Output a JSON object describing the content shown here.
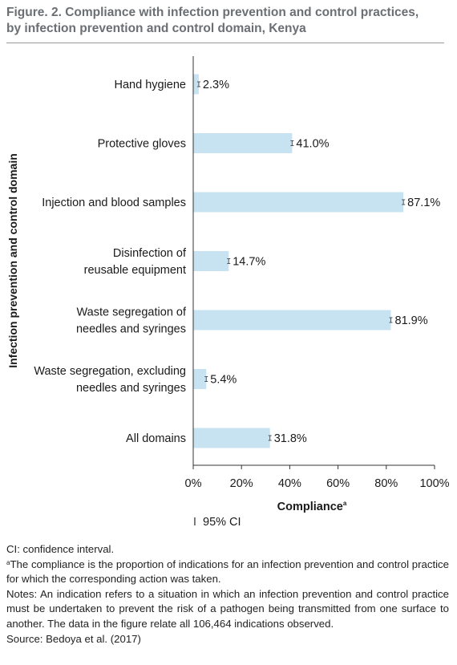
{
  "figure": {
    "title_line1": "Figure. 2.  Compliance with infection prevention and control practices,",
    "title_line2": "by infection prevention and control domain, Kenya"
  },
  "chart_data": {
    "type": "bar",
    "orientation": "horizontal",
    "ylabel": "Infection prevention and control domain",
    "xlabel": "Compliance",
    "xlabel_superscript": "a",
    "xlim": [
      0,
      100
    ],
    "x_ticks": [
      "0%",
      "20%",
      "40%",
      "60%",
      "80%",
      "100%"
    ],
    "categories": [
      [
        "Hand hygiene"
      ],
      [
        "Protective gloves"
      ],
      [
        "Injection and blood samples"
      ],
      [
        "Disinfection of",
        "reusable equipment"
      ],
      [
        "Waste segregation of",
        "needles and syringes"
      ],
      [
        "Waste segregation, excluding",
        "needles and syringes"
      ],
      [
        "All domains"
      ]
    ],
    "values": [
      2.3,
      41.0,
      87.1,
      14.7,
      81.9,
      5.4,
      31.8
    ],
    "value_labels": [
      "2.3%",
      "41.0%",
      "87.1%",
      "14.7%",
      "81.9%",
      "5.4%",
      "31.8%"
    ],
    "legend": {
      "symbol": "I",
      "label": "95% CI"
    },
    "bar_color": "#c7e3f1",
    "grid": false
  },
  "notes": {
    "ci": "CI: confidence interval.",
    "footnote_mark": "a",
    "footnote_a": "The compliance is the proportion of indications for an infection prevention and control practice for which the corresponding action was taken.",
    "notes_text": "Notes: An indication refers to a situation in which an infection prevention and control practice must be undertaken to prevent the risk of a pathogen being transmitted from one surface to another. The data in the figure relate all 106,464 indications observed.",
    "source": "Source: Bedoya et al. (2017)"
  }
}
